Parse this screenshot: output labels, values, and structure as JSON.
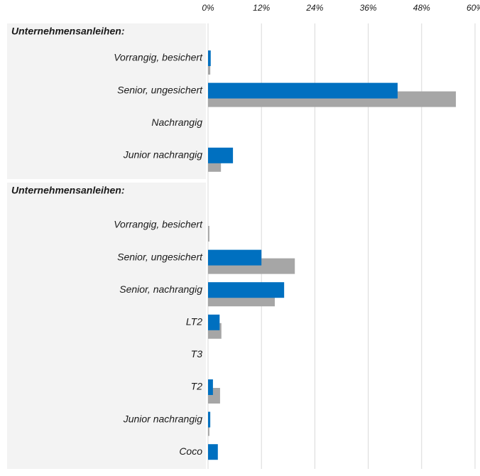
{
  "chart_data": {
    "type": "bar",
    "orientation": "horizontal",
    "xlim": [
      0,
      60
    ],
    "xticks": [
      {
        "value": 0,
        "label": "0%"
      },
      {
        "value": 12,
        "label": "12%"
      },
      {
        "value": 24,
        "label": "24%"
      },
      {
        "value": 36,
        "label": "36%"
      },
      {
        "value": 48,
        "label": "48%"
      },
      {
        "value": 60,
        "label": "60%"
      }
    ],
    "grid": true,
    "groups": [
      {
        "title": "Unternehmensanleihen:",
        "categories": [
          "Vorrangig, besichert",
          "Senior, ungesichert",
          "Nachrangig",
          "Junior nachrangig"
        ],
        "series": [
          {
            "color": "#0070c0",
            "values": [
              0.6,
              42.6,
              0,
              5.6
            ]
          },
          {
            "color": "#a6a6a6",
            "values": [
              0.5,
              55.7,
              0,
              2.9
            ]
          }
        ]
      },
      {
        "title": "Unternehmensanleihen:",
        "categories": [
          "Vorrangig, besichert",
          "Senior, ungesichert",
          "Senior, nachrangig",
          "LT2",
          "T3",
          "T2",
          "Junior nachrangig",
          "Coco"
        ],
        "series": [
          {
            "color": "#0070c0",
            "values": [
              0,
              12.0,
              17.1,
              2.6,
              0,
              1.1,
              0.5,
              2.2
            ]
          },
          {
            "color": "#a6a6a6",
            "values": [
              0.3,
              19.5,
              15.0,
              3.0,
              0,
              2.7,
              0.3,
              0
            ]
          }
        ]
      }
    ]
  }
}
